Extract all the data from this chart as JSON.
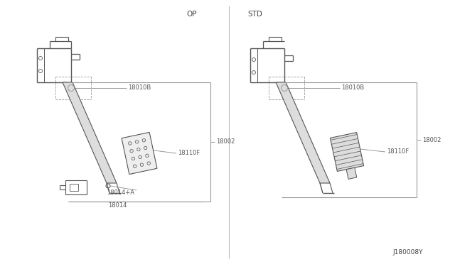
{
  "background_color": "#ffffff",
  "line_color": "#999999",
  "dark_line_color": "#555555",
  "text_color": "#555555",
  "label_op": "OP",
  "label_std": "STD",
  "label_18002_op": "18002",
  "label_18002_std": "18002",
  "label_18010b_op": "18010B",
  "label_18010b_std": "18010B",
  "label_18110f_op": "18110F",
  "label_18110f_std": "18110F",
  "label_18014a": "18014+A",
  "label_18014": "18014",
  "label_copyright": "J180008Y",
  "fig_width": 6.4,
  "fig_height": 3.72,
  "dpi": 100
}
